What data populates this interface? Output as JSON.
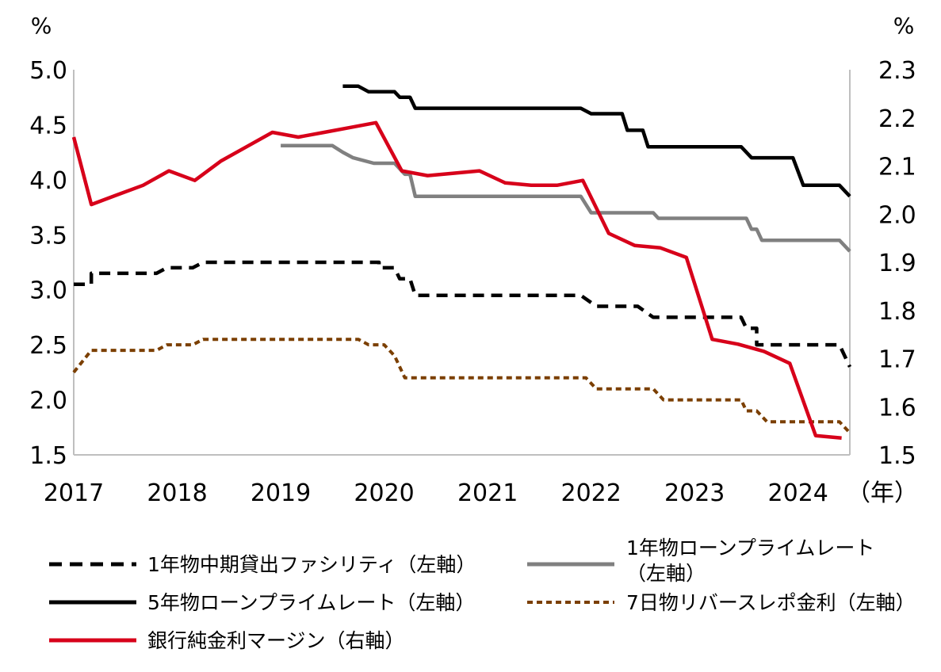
{
  "chart_data": {
    "type": "line",
    "left_axis": {
      "unit": "%",
      "ylim": [
        1.5,
        5.0
      ],
      "ticks": [
        "5.0",
        "4.5",
        "4.0",
        "3.5",
        "3.0",
        "2.5",
        "2.0",
        "1.5"
      ]
    },
    "right_axis": {
      "unit": "%",
      "ylim": [
        1.5,
        2.3
      ],
      "ticks": [
        "2.3",
        "2.2",
        "2.1",
        "2.0",
        "1.9",
        "1.8",
        "1.7",
        "1.6",
        "1.5"
      ]
    },
    "x_axis": {
      "xlim": [
        2017.0,
        2024.5
      ],
      "ticks": [
        "2017",
        "2018",
        "2019",
        "2020",
        "2021",
        "2022",
        "2023",
        "2024"
      ],
      "unit_label": "（年）"
    },
    "series": [
      {
        "name": "1年物中期貸出ファシリティ（左軸）",
        "axis": "left",
        "color": "#000000",
        "style": "dashed",
        "points": [
          [
            2017.0,
            3.05
          ],
          [
            2017.17,
            3.05
          ],
          [
            2017.17,
            3.15
          ],
          [
            2017.8,
            3.15
          ],
          [
            2017.9,
            3.2
          ],
          [
            2018.15,
            3.2
          ],
          [
            2018.25,
            3.25
          ],
          [
            2019.95,
            3.25
          ],
          [
            2019.95,
            3.2
          ],
          [
            2020.1,
            3.2
          ],
          [
            2020.15,
            3.1
          ],
          [
            2020.25,
            3.1
          ],
          [
            2020.3,
            2.95
          ],
          [
            2021.9,
            2.95
          ],
          [
            2022.05,
            2.85
          ],
          [
            2022.45,
            2.85
          ],
          [
            2022.6,
            2.75
          ],
          [
            2023.45,
            2.75
          ],
          [
            2023.5,
            2.65
          ],
          [
            2023.6,
            2.65
          ],
          [
            2023.6,
            2.5
          ],
          [
            2024.4,
            2.5
          ],
          [
            2024.5,
            2.3
          ]
        ]
      },
      {
        "name": "1年物ローンプライムレート（左軸）",
        "axis": "left",
        "color": "#808080",
        "style": "solid",
        "points": [
          [
            2019.0,
            4.31
          ],
          [
            2019.5,
            4.31
          ],
          [
            2019.6,
            4.25
          ],
          [
            2019.7,
            4.2
          ],
          [
            2019.9,
            4.15
          ],
          [
            2020.1,
            4.15
          ],
          [
            2020.2,
            4.05
          ],
          [
            2020.25,
            4.05
          ],
          [
            2020.3,
            3.85
          ],
          [
            2021.9,
            3.85
          ],
          [
            2022.0,
            3.7
          ],
          [
            2022.6,
            3.7
          ],
          [
            2022.65,
            3.65
          ],
          [
            2023.5,
            3.65
          ],
          [
            2023.55,
            3.55
          ],
          [
            2023.6,
            3.55
          ],
          [
            2023.65,
            3.45
          ],
          [
            2024.4,
            3.45
          ],
          [
            2024.5,
            3.35
          ]
        ]
      },
      {
        "name": "5年物ローンプライムレート（左軸）",
        "axis": "left",
        "color": "#000000",
        "style": "solid",
        "points": [
          [
            2019.6,
            4.85
          ],
          [
            2019.75,
            4.85
          ],
          [
            2019.85,
            4.8
          ],
          [
            2020.1,
            4.8
          ],
          [
            2020.15,
            4.75
          ],
          [
            2020.25,
            4.75
          ],
          [
            2020.3,
            4.65
          ],
          [
            2021.9,
            4.65
          ],
          [
            2022.0,
            4.6
          ],
          [
            2022.3,
            4.6
          ],
          [
            2022.35,
            4.45
          ],
          [
            2022.5,
            4.45
          ],
          [
            2022.55,
            4.3
          ],
          [
            2023.45,
            4.3
          ],
          [
            2023.55,
            4.2
          ],
          [
            2023.95,
            4.2
          ],
          [
            2024.05,
            3.95
          ],
          [
            2024.4,
            3.95
          ],
          [
            2024.5,
            3.85
          ]
        ]
      },
      {
        "name": "7日物リバースレポ金利（左軸）",
        "axis": "left",
        "color": "#7b3f00",
        "style": "dotted",
        "points": [
          [
            2017.0,
            2.25
          ],
          [
            2017.17,
            2.45
          ],
          [
            2017.8,
            2.45
          ],
          [
            2017.9,
            2.5
          ],
          [
            2018.15,
            2.5
          ],
          [
            2018.25,
            2.55
          ],
          [
            2019.75,
            2.55
          ],
          [
            2019.85,
            2.5
          ],
          [
            2020.0,
            2.5
          ],
          [
            2020.1,
            2.4
          ],
          [
            2020.2,
            2.2
          ],
          [
            2021.95,
            2.2
          ],
          [
            2022.05,
            2.1
          ],
          [
            2022.6,
            2.1
          ],
          [
            2022.7,
            2.0
          ],
          [
            2023.45,
            2.0
          ],
          [
            2023.5,
            1.9
          ],
          [
            2023.6,
            1.9
          ],
          [
            2023.7,
            1.8
          ],
          [
            2024.4,
            1.8
          ],
          [
            2024.5,
            1.7
          ]
        ]
      },
      {
        "name": "銀行純金利マージン（右軸）",
        "axis": "right",
        "color": "#d7001a",
        "style": "solid",
        "points": [
          [
            2017.0,
            2.16
          ],
          [
            2017.17,
            2.02
          ],
          [
            2017.42,
            2.04
          ],
          [
            2017.67,
            2.06
          ],
          [
            2017.92,
            2.09
          ],
          [
            2018.17,
            2.07
          ],
          [
            2018.42,
            2.11
          ],
          [
            2018.67,
            2.14
          ],
          [
            2018.92,
            2.17
          ],
          [
            2019.17,
            2.16
          ],
          [
            2019.42,
            2.17
          ],
          [
            2019.67,
            2.18
          ],
          [
            2019.92,
            2.19
          ],
          [
            2020.17,
            2.09
          ],
          [
            2020.42,
            2.08
          ],
          [
            2020.67,
            2.085
          ],
          [
            2020.92,
            2.09
          ],
          [
            2021.17,
            2.065
          ],
          [
            2021.42,
            2.06
          ],
          [
            2021.67,
            2.06
          ],
          [
            2021.92,
            2.07
          ],
          [
            2022.17,
            1.96
          ],
          [
            2022.42,
            1.935
          ],
          [
            2022.67,
            1.93
          ],
          [
            2022.92,
            1.91
          ],
          [
            2023.17,
            1.74
          ],
          [
            2023.42,
            1.73
          ],
          [
            2023.67,
            1.715
          ],
          [
            2023.92,
            1.69
          ],
          [
            2024.17,
            1.54
          ],
          [
            2024.42,
            1.535
          ]
        ]
      }
    ]
  }
}
